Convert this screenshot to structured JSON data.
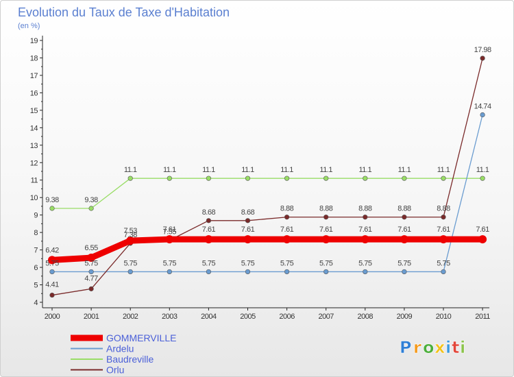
{
  "chart_data": {
    "type": "line",
    "title": "Evolution du Taux de Taxe d'Habitation",
    "subtitle": "(en %)",
    "xlabel": "",
    "ylabel": "",
    "ylim": [
      4,
      19
    ],
    "y_ticks": [
      4,
      5,
      6,
      7,
      8,
      9,
      10,
      11,
      12,
      13,
      14,
      15,
      16,
      17,
      18,
      19
    ],
    "x": [
      "2000",
      "2001",
      "2002",
      "2003",
      "2004",
      "2005",
      "2006",
      "2007",
      "2008",
      "2009",
      "2010",
      "2011"
    ],
    "series": [
      {
        "name": "GOMMERVILLE",
        "color": "#ee0000",
        "values": [
          6.42,
          6.55,
          7.53,
          7.61,
          7.61,
          7.61,
          7.61,
          7.61,
          7.61,
          7.61,
          7.61,
          7.61
        ],
        "labels": [
          "6.42",
          "6.55",
          "7.53",
          "7.61",
          "7.61",
          "7.61",
          "7.61",
          "7.61",
          "7.61",
          "7.61",
          "7.61",
          "7.61"
        ]
      },
      {
        "name": "Ardelu",
        "color": "#6a9cd0",
        "values": [
          5.75,
          5.75,
          5.75,
          5.75,
          5.75,
          5.75,
          5.75,
          5.75,
          5.75,
          5.75,
          5.75,
          14.74
        ],
        "labels": [
          "5.75",
          "5.75",
          "5.75",
          "5.75",
          "5.75",
          "5.75",
          "5.75",
          "5.75",
          "5.75",
          "5.75",
          "5.75",
          "14.74"
        ]
      },
      {
        "name": "Baudreville",
        "color": "#99dd66",
        "values": [
          9.38,
          9.38,
          11.1,
          11.1,
          11.1,
          11.1,
          11.1,
          11.1,
          11.1,
          11.1,
          11.1,
          11.1
        ],
        "labels": [
          "9.38",
          "9.38",
          "11.1",
          "11.1",
          "11.1",
          "11.1",
          "11.1",
          "11.1",
          "11.1",
          "11.1",
          "11.1",
          "11.1"
        ]
      },
      {
        "name": "Orlu",
        "color": "#7a2a2a",
        "values": [
          4.41,
          4.77,
          7.38,
          7.55,
          8.68,
          8.68,
          8.88,
          8.88,
          8.88,
          8.88,
          8.88,
          17.98
        ],
        "labels": [
          "4.41",
          "4.77",
          "7.38",
          "7.55",
          "8.68",
          "8.68",
          "8.88",
          "8.88",
          "8.88",
          "8.88",
          "8.88",
          "17.98"
        ]
      }
    ],
    "legend_position": "bottom-left",
    "grid": false
  },
  "logo": {
    "letters": [
      "P",
      "r",
      "o",
      "x",
      "i",
      "t",
      "i"
    ],
    "colors": [
      "#2f7fd6",
      "#f59a1c",
      "#4caf3c",
      "#f2c21b",
      "#3b9be0",
      "#e2463a",
      "#8bc34a"
    ]
  }
}
